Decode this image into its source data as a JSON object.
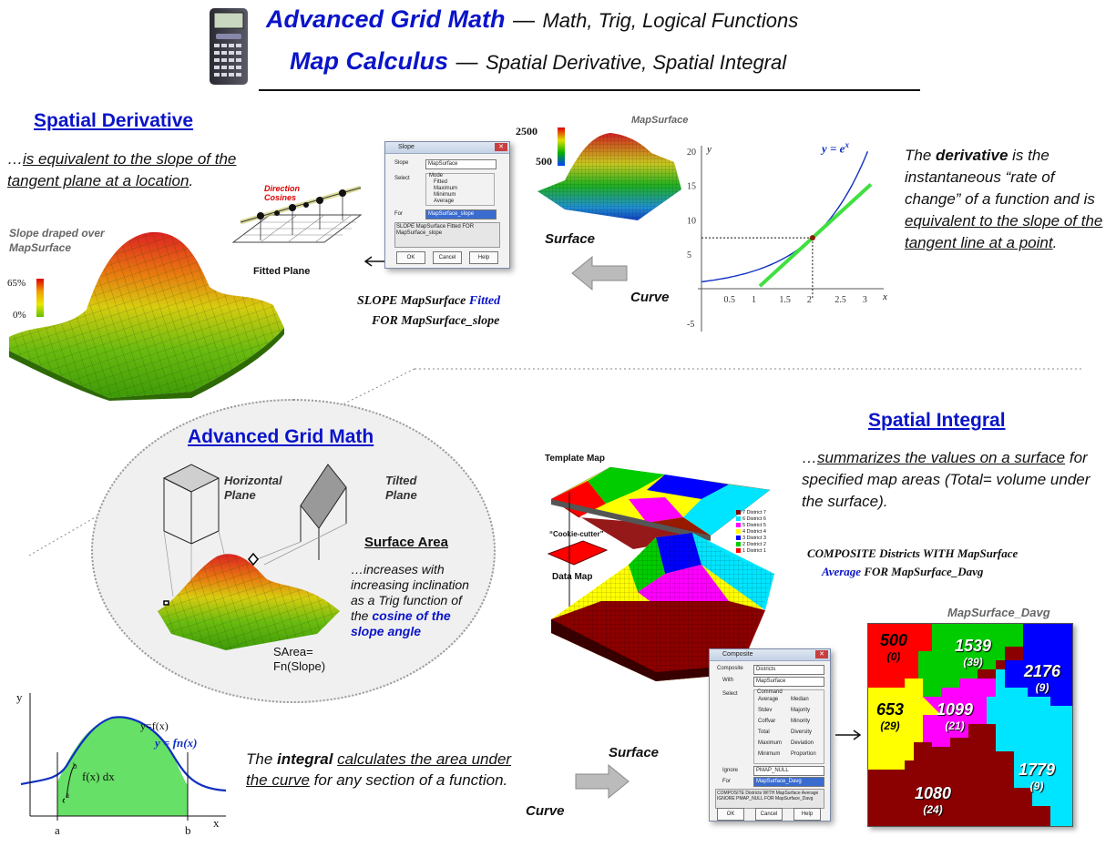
{
  "header": {
    "line1_title": "Advanced Grid Math",
    "line1_dash": "—",
    "line1_sub": "Math, Trig, Logical Functions",
    "line2_title": "Map Calculus",
    "line2_dash": "—",
    "line2_sub": "Spatial Derivative, Spatial Integral"
  },
  "derivative": {
    "title": "Spatial Derivative",
    "desc_pre": "…",
    "desc_u": "is equivalent to the slope of the tangent plane at a location",
    "desc_post": ".",
    "slope_label": "Slope draped over MapSurface",
    "legend_max": "65%",
    "legend_min": "0%",
    "fitted_plane": "Fitted Plane",
    "direction_cosines": "Direction Cosines",
    "mapsurface_label": "MapSurface",
    "scale_max": "2500",
    "scale_min": "500",
    "surface": "Surface",
    "curve": "Curve",
    "cmd_line1_a": "SLOPE MapSurface ",
    "cmd_line1_b": "Fitted",
    "cmd_line2": "FOR MapSurface_slope",
    "graph": {
      "equation": "y = e",
      "exp": "x",
      "y_ticks": [
        "20",
        "15",
        "10",
        "5",
        "-5"
      ],
      "x_ticks": [
        "0.5",
        "1",
        "1.5",
        "2",
        "2.5",
        "3"
      ],
      "x_axis": "x",
      "y_axis": "y"
    },
    "explain_1": "The ",
    "explain_bold": "derivative",
    "explain_2": " is the instantaneous “rate of change” of a function and is ",
    "explain_u": "equivalent to the slope of the tangent line at a point",
    "explain_3": "."
  },
  "slope_dialog": {
    "title": "Slope",
    "slope_lbl": "Slope",
    "slope_val": "MapSurface",
    "select_lbl": "Select",
    "mode_lbl": "Mode",
    "modes": [
      "Fitted",
      "Maximum",
      "Minimum",
      "Average"
    ],
    "for_lbl": "For",
    "for_val": "MapSurface_slope",
    "cmd_text": "SLOPE MapSurface Fitted FOR MapSurface_slope",
    "ok": "OK",
    "cancel": "Cancel",
    "help": "Help"
  },
  "grid_math": {
    "title": "Advanced Grid Math",
    "horizontal": "Horizontal Plane",
    "tilted": "Tilted Plane",
    "surface_area": "Surface Area",
    "desc_1": "…increases with increasing inclination as a Trig function of the ",
    "desc_blue": "cosine of the slope angle",
    "formula": "SArea= Fn(Slope)"
  },
  "integral": {
    "title": "Spatial Integral",
    "desc_pre": "…",
    "desc_u": "summarizes the values on a surface",
    "desc_post": " for specified map areas (Total= volume under the surface).",
    "cmd_line1": "COMPOSITE Districts WITH MapSurface",
    "cmd_line2_a": "Average",
    "cmd_line2_b": " FOR MapSurface_Davg",
    "template_map": "Template Map",
    "cookie_cutter": "“Cookie-cutter”",
    "data_map": "Data Map",
    "districts": [
      "7 District 7",
      "6 District 6",
      "5 District 5",
      "4 District 4",
      "3 District 3",
      "2 District 2",
      "1 District 1"
    ],
    "district_colors": [
      "#8b0000",
      "#00e5ff",
      "#ff00ff",
      "#ffff00",
      "#0000ff",
      "#00cc00",
      "#ff0000"
    ],
    "result_title": "MapSurface_Davg",
    "result_values": [
      {
        "n": "500",
        "c": "(0)"
      },
      {
        "n": "1539",
        "c": "(39)"
      },
      {
        "n": "2176",
        "c": "(9)"
      },
      {
        "n": "653",
        "c": "(29)"
      },
      {
        "n": "1099",
        "c": "(21)"
      },
      {
        "n": "1779",
        "c": "(9)"
      },
      {
        "n": "1080",
        "c": "(24)"
      }
    ],
    "curve_graph": {
      "y": "y",
      "x": "x",
      "a": "a",
      "b": "b",
      "fx": "y=f(x)",
      "fn": "y = fn(x)",
      "integral": "f(x) dx",
      "lower": "a",
      "upper": "b"
    },
    "explain_1": "The ",
    "explain_bold": "integral",
    "explain_2": " ",
    "explain_u": "calculates the area under the curve",
    "explain_3": " for any section of a function.",
    "surface": "Surface",
    "curve": "Curve"
  },
  "composite_dialog": {
    "title": "Composite",
    "composite_lbl": "Composite",
    "composite_val": "Districts",
    "with_lbl": "With",
    "with_val": "MapSurface",
    "select_lbl": "Select",
    "command_lbl": "Command",
    "opts_left": [
      "Average",
      "Stdev",
      "Coffvar",
      "Total",
      "Maximum",
      "Minimum"
    ],
    "opts_right": [
      "Median",
      "Majority",
      "Minority",
      "Diversity",
      "Deviation",
      "Proportion"
    ],
    "ignore_lbl": "Ignore",
    "ignore_val": "PMAP_NULL",
    "for_lbl": "For",
    "for_val": "MapSurface_Davg",
    "cmd_text": "COMPOSITE Districts WITH MapSurface Average IGNORE PMAP_NULL FOR MapSurface_Davg",
    "ok": "OK",
    "cancel": "Cancel",
    "help": "Help"
  }
}
